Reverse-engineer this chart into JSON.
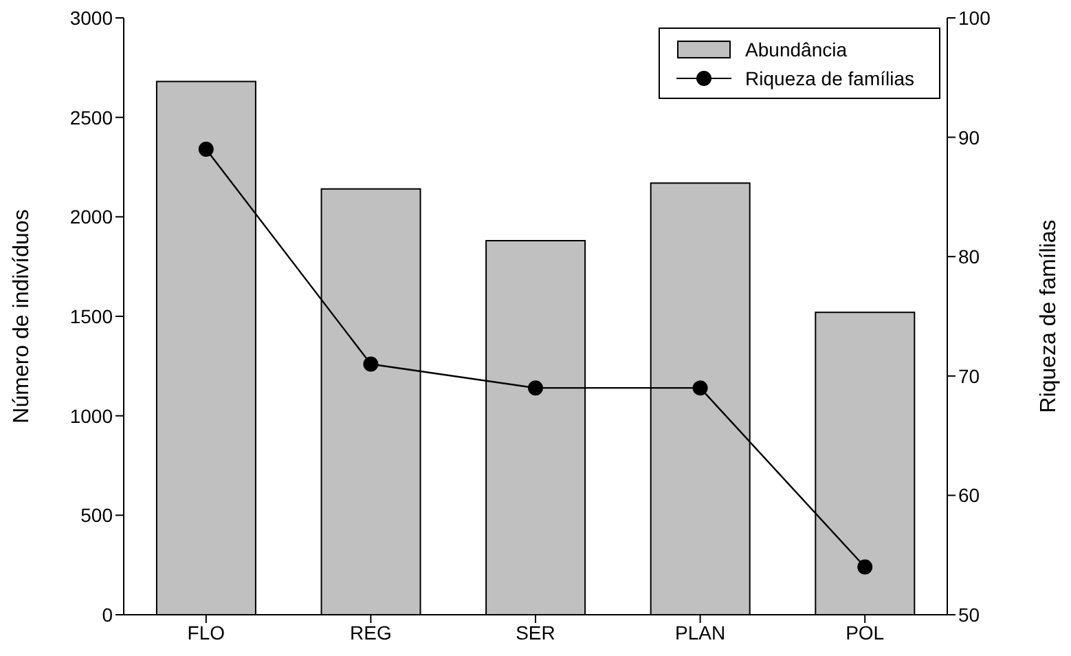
{
  "chart_data": {
    "type": "bar",
    "categories": [
      "FLO",
      "REG",
      "SER",
      "PLAN",
      "POL"
    ],
    "series": [
      {
        "name": "Abundância",
        "color": "#c0c0c0",
        "values": [
          2680,
          2140,
          1880,
          2170,
          1520
        ]
      },
      {
        "name": "Riqueza de famílias",
        "type": "line",
        "axis": "y2",
        "color": "#000000",
        "marker": "circle",
        "values": [
          89,
          71,
          69,
          69,
          54
        ]
      }
    ],
    "ylabel": "Número de indivíduos",
    "y2label": "Riqueza de famílias",
    "ylim": [
      0,
      3000
    ],
    "yticks": [
      0,
      500,
      1000,
      1500,
      2000,
      2500,
      3000
    ],
    "y2lim": [
      50,
      100
    ],
    "y2ticks": [
      50,
      60,
      70,
      80,
      90,
      100
    ],
    "legend": "top right",
    "grid": false
  }
}
